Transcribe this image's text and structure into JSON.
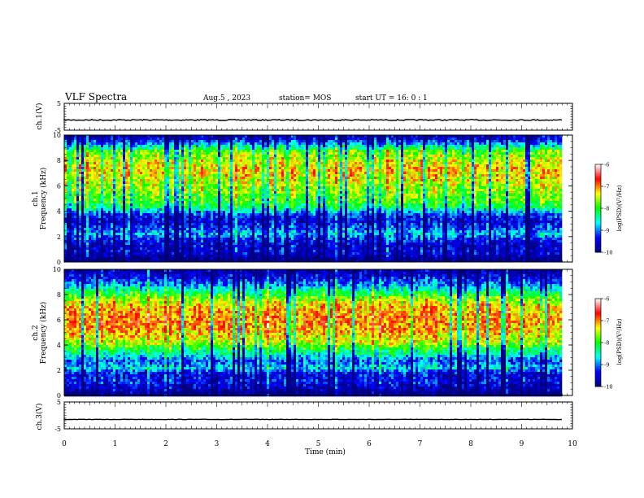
{
  "header": {
    "title": "VLF Spectra",
    "date": "Aug.5 , 2023",
    "station": "station= MOS",
    "start": "start UT = 16: 0 : 1"
  },
  "colorbar": {
    "label": "log(PSD)(V²/Hz)",
    "ticks": [
      "-6",
      "-7",
      "-8",
      "-9",
      "-10"
    ],
    "range": [
      -10,
      -6
    ]
  },
  "chart_data": [
    {
      "type": "line",
      "panel": "ch1-voltage",
      "ylabel": "ch.1(V)",
      "ylim": [
        -5,
        5
      ],
      "yticks": [
        "5",
        "-5"
      ],
      "x_range_min": [
        0,
        9.8
      ],
      "level": -1.2
    },
    {
      "type": "heatmap",
      "panel": "ch1-spectrogram",
      "ylabel": "ch.1",
      "ylabel2": "Frequency (kHz)",
      "ylim": [
        0,
        10
      ],
      "yticks": [
        "10",
        "8",
        "6",
        "4",
        "2",
        "0"
      ],
      "x_range_min": [
        0,
        9.8
      ],
      "colormap": [
        "#00007f",
        "#0000ff",
        "#00ffff",
        "#00ff00",
        "#ffff00",
        "#ff0000",
        "#ffffff"
      ],
      "profile_khz": [
        0.25,
        0.75,
        1.25,
        1.75,
        2.25,
        2.75,
        3.25,
        3.75,
        4.25,
        4.75,
        5.25,
        5.75,
        6.25,
        6.75,
        7.25,
        7.75,
        8.25,
        8.75,
        9.25,
        9.75
      ],
      "profile_log_psd": [
        -10,
        -9.5,
        -9.6,
        -9.3,
        -8.8,
        -9.2,
        -9.5,
        -9.2,
        -8.3,
        -7.9,
        -7.8,
        -7.6,
        -7.5,
        -7.3,
        -7.2,
        -7.3,
        -7.6,
        -7.8,
        -8.8,
        -9.6
      ]
    },
    {
      "type": "heatmap",
      "panel": "ch2-spectrogram",
      "ylabel": "ch.2",
      "ylabel2": "Frequency (kHz)",
      "ylim": [
        0,
        10
      ],
      "yticks": [
        "10",
        "8",
        "6",
        "4",
        "2",
        "0"
      ],
      "x_range_min": [
        0,
        9.8
      ],
      "colormap": [
        "#00007f",
        "#0000ff",
        "#00ffff",
        "#00ff00",
        "#ffff00",
        "#ff0000",
        "#ffffff"
      ],
      "profile_khz": [
        0.25,
        0.75,
        1.25,
        1.75,
        2.25,
        2.75,
        3.25,
        3.75,
        4.25,
        4.75,
        5.25,
        5.75,
        6.25,
        6.75,
        7.25,
        7.75,
        8.25,
        8.75,
        9.25,
        9.75
      ],
      "profile_log_psd": [
        -10,
        -9.6,
        -9.4,
        -9.5,
        -8.7,
        -9.2,
        -8.6,
        -8.1,
        -7.5,
        -7.3,
        -7.1,
        -7.0,
        -7.0,
        -7.1,
        -7.3,
        -7.7,
        -8.3,
        -8.9,
        -9.4,
        -9.7
      ]
    },
    {
      "type": "line",
      "panel": "ch3-voltage",
      "ylabel": "ch.3(V)",
      "ylim": [
        -5,
        5
      ],
      "yticks": [
        "5",
        "-5"
      ],
      "x_range_min": [
        0,
        9.8
      ],
      "level": -1.5
    }
  ],
  "xaxis": {
    "label": "Time (min)",
    "range": [
      0,
      10
    ],
    "ticks": [
      "0",
      "1",
      "2",
      "3",
      "4",
      "5",
      "6",
      "7",
      "8",
      "9",
      "10"
    ]
  }
}
